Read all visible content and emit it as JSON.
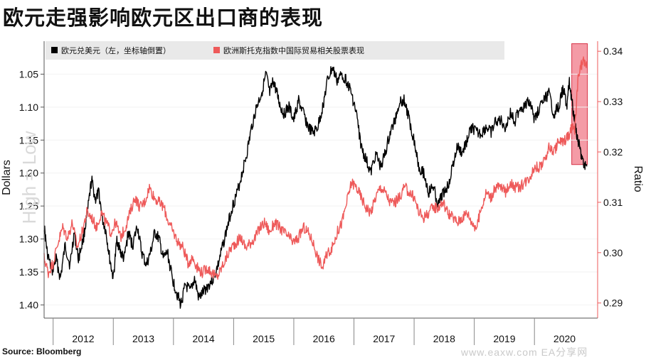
{
  "title": "欧元走强影响欧元区出口商的表现",
  "source": "Source: Bloomberg",
  "watermark": "www.eaxw.com  EA分享网",
  "colors": {
    "eur_usd": "#000000",
    "ratio": "#ee5a5a",
    "highlight": "#f07a88",
    "right_axis": "#ee5a5a",
    "legend_bg": "#e9e9e9"
  },
  "chart_data": {
    "type": "line",
    "x_axis": {
      "type": "time",
      "range": [
        2011.35,
        2020.55
      ],
      "tick_labels": [
        "2012",
        "2013",
        "2014",
        "2015",
        "2016",
        "2017",
        "2018",
        "2019",
        "2020"
      ],
      "tick_centers": [
        2012,
        2013,
        2014,
        2015,
        2016,
        2017,
        2018,
        2019,
        2020
      ]
    },
    "left_axis": {
      "label": "Dollars",
      "inverted": true,
      "range": [
        1.0,
        1.42
      ],
      "ticks": [
        "1.05",
        "1.10",
        "1.15",
        "1.20",
        "1.25",
        "1.30",
        "1.35",
        "1.40"
      ],
      "overlay_label": "High = Low"
    },
    "right_axis": {
      "label": "Ratio",
      "range": [
        0.287,
        0.342
      ],
      "ticks": [
        "0.34",
        "0.33",
        "0.32",
        "0.31",
        "0.30",
        "0.29"
      ]
    },
    "legend": [
      {
        "name": "欧元兑美元（左，坐标轴倒置）",
        "color": "#000000"
      },
      {
        "name": "欧洲斯托克指数中国际贸易相关股票表现",
        "color": "#ee5a5a"
      }
    ],
    "highlight": {
      "x_range": [
        2020.12,
        2020.38
      ]
    },
    "series": [
      {
        "name": "欧元兑美元（左，坐标轴倒置）",
        "axis": "left",
        "color": "#000000",
        "x": [
          2011.35,
          2011.4,
          2011.48,
          2011.55,
          2011.62,
          2011.7,
          2011.78,
          2011.85,
          2011.92,
          2012.0,
          2012.07,
          2012.14,
          2012.2,
          2012.26,
          2012.32,
          2012.38,
          2012.44,
          2012.5,
          2012.56,
          2012.62,
          2012.68,
          2012.75,
          2012.82,
          2012.9,
          2012.97,
          2013.05,
          2013.12,
          2013.19,
          2013.26,
          2013.33,
          2013.4,
          2013.48,
          2013.55,
          2013.62,
          2013.7,
          2013.78,
          2013.85,
          2013.92,
          2014.0,
          2014.08,
          2014.16,
          2014.24,
          2014.32,
          2014.4,
          2014.48,
          2014.56,
          2014.64,
          2014.72,
          2014.8,
          2014.88,
          2014.96,
          2015.04,
          2015.1,
          2015.16,
          2015.22,
          2015.28,
          2015.34,
          2015.42,
          2015.5,
          2015.58,
          2015.66,
          2015.74,
          2015.82,
          2015.9,
          2015.98,
          2016.06,
          2016.14,
          2016.22,
          2016.3,
          2016.38,
          2016.46,
          2016.54,
          2016.62,
          2016.7,
          2016.78,
          2016.86,
          2016.94,
          2017.02,
          2017.1,
          2017.18,
          2017.26,
          2017.34,
          2017.42,
          2017.5,
          2017.58,
          2017.66,
          2017.74,
          2017.82,
          2017.9,
          2017.98,
          2018.06,
          2018.14,
          2018.22,
          2018.3,
          2018.38,
          2018.46,
          2018.54,
          2018.62,
          2018.7,
          2018.78,
          2018.86,
          2018.94,
          2019.02,
          2019.1,
          2019.18,
          2019.26,
          2019.34,
          2019.42,
          2019.5,
          2019.58,
          2019.66,
          2019.74,
          2019.82,
          2019.9,
          2019.98,
          2020.04,
          2020.08,
          2020.12,
          2020.17,
          2020.22,
          2020.27,
          2020.32,
          2020.37
        ],
        "y": [
          1.28,
          1.32,
          1.35,
          1.33,
          1.36,
          1.31,
          1.34,
          1.29,
          1.33,
          1.3,
          1.26,
          1.21,
          1.24,
          1.23,
          1.27,
          1.29,
          1.33,
          1.36,
          1.3,
          1.32,
          1.33,
          1.29,
          1.31,
          1.28,
          1.32,
          1.34,
          1.32,
          1.29,
          1.3,
          1.33,
          1.32,
          1.36,
          1.38,
          1.4,
          1.37,
          1.38,
          1.36,
          1.39,
          1.38,
          1.37,
          1.36,
          1.34,
          1.31,
          1.28,
          1.25,
          1.23,
          1.2,
          1.17,
          1.13,
          1.1,
          1.08,
          1.05,
          1.08,
          1.06,
          1.08,
          1.1,
          1.11,
          1.1,
          1.12,
          1.09,
          1.11,
          1.13,
          1.14,
          1.13,
          1.1,
          1.06,
          1.04,
          1.06,
          1.05,
          1.06,
          1.08,
          1.11,
          1.16,
          1.18,
          1.2,
          1.17,
          1.19,
          1.17,
          1.14,
          1.12,
          1.09,
          1.09,
          1.12,
          1.15,
          1.19,
          1.2,
          1.23,
          1.22,
          1.25,
          1.23,
          1.22,
          1.19,
          1.16,
          1.17,
          1.15,
          1.13,
          1.14,
          1.14,
          1.13,
          1.14,
          1.12,
          1.12,
          1.13,
          1.11,
          1.12,
          1.1,
          1.1,
          1.09,
          1.12,
          1.1,
          1.09,
          1.08,
          1.11,
          1.1,
          1.07,
          1.1,
          1.06,
          1.09,
          1.12,
          1.15,
          1.17,
          1.19,
          1.19
        ]
      },
      {
        "name": "欧洲斯托克指数中国际贸易相关股票表现",
        "axis": "right",
        "color": "#ee5a5a",
        "x": [
          2011.35,
          2011.42,
          2011.5,
          2011.58,
          2011.66,
          2011.74,
          2011.82,
          2011.9,
          2011.98,
          2012.06,
          2012.14,
          2012.22,
          2012.3,
          2012.38,
          2012.46,
          2012.54,
          2012.62,
          2012.7,
          2012.78,
          2012.86,
          2012.94,
          2013.02,
          2013.1,
          2013.18,
          2013.26,
          2013.34,
          2013.42,
          2013.5,
          2013.58,
          2013.66,
          2013.74,
          2013.82,
          2013.9,
          2013.98,
          2014.06,
          2014.14,
          2014.22,
          2014.3,
          2014.38,
          2014.46,
          2014.54,
          2014.62,
          2014.7,
          2014.78,
          2014.86,
          2014.94,
          2015.02,
          2015.1,
          2015.18,
          2015.26,
          2015.34,
          2015.42,
          2015.5,
          2015.58,
          2015.66,
          2015.74,
          2015.82,
          2015.9,
          2015.98,
          2016.06,
          2016.14,
          2016.22,
          2016.3,
          2016.38,
          2016.46,
          2016.54,
          2016.62,
          2016.7,
          2016.78,
          2016.86,
          2016.94,
          2017.02,
          2017.1,
          2017.18,
          2017.26,
          2017.34,
          2017.42,
          2017.5,
          2017.58,
          2017.66,
          2017.74,
          2017.82,
          2017.9,
          2017.98,
          2018.06,
          2018.14,
          2018.22,
          2018.3,
          2018.38,
          2018.46,
          2018.54,
          2018.62,
          2018.7,
          2018.78,
          2018.86,
          2018.94,
          2019.02,
          2019.1,
          2019.18,
          2019.26,
          2019.34,
          2019.42,
          2019.5,
          2019.58,
          2019.66,
          2019.74,
          2019.82,
          2019.9,
          2019.98,
          2020.04,
          2020.08,
          2020.12,
          2020.17,
          2020.22,
          2020.27,
          2020.32,
          2020.37
        ],
        "y": [
          0.299,
          0.296,
          0.298,
          0.302,
          0.305,
          0.303,
          0.306,
          0.301,
          0.304,
          0.308,
          0.307,
          0.305,
          0.308,
          0.306,
          0.304,
          0.306,
          0.303,
          0.305,
          0.308,
          0.311,
          0.309,
          0.31,
          0.313,
          0.311,
          0.31,
          0.309,
          0.306,
          0.304,
          0.302,
          0.301,
          0.298,
          0.299,
          0.297,
          0.296,
          0.297,
          0.296,
          0.295,
          0.297,
          0.299,
          0.301,
          0.302,
          0.303,
          0.301,
          0.302,
          0.303,
          0.305,
          0.306,
          0.304,
          0.306,
          0.305,
          0.304,
          0.303,
          0.302,
          0.303,
          0.305,
          0.304,
          0.302,
          0.299,
          0.297,
          0.3,
          0.301,
          0.304,
          0.306,
          0.31,
          0.314,
          0.313,
          0.311,
          0.309,
          0.308,
          0.311,
          0.313,
          0.312,
          0.31,
          0.31,
          0.311,
          0.313,
          0.312,
          0.311,
          0.308,
          0.307,
          0.308,
          0.309,
          0.309,
          0.31,
          0.308,
          0.307,
          0.306,
          0.307,
          0.308,
          0.306,
          0.305,
          0.309,
          0.312,
          0.311,
          0.313,
          0.313,
          0.312,
          0.314,
          0.313,
          0.313,
          0.314,
          0.315,
          0.317,
          0.317,
          0.318,
          0.321,
          0.32,
          0.322,
          0.322,
          0.323,
          0.323,
          0.325,
          0.324,
          0.334,
          0.337,
          0.338,
          0.337
        ]
      }
    ]
  }
}
